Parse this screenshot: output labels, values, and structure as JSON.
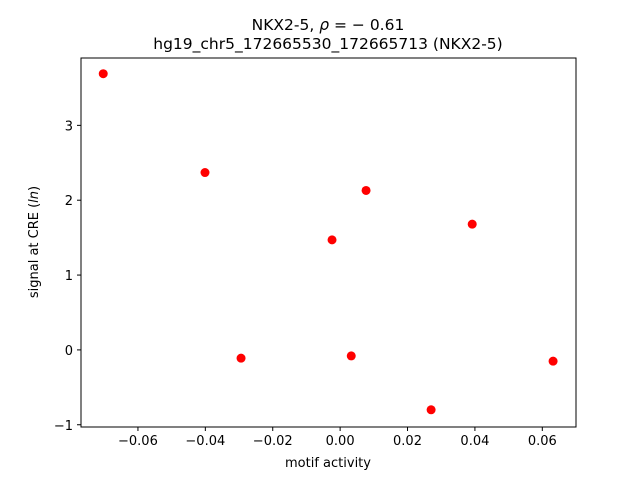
{
  "chart_data": {
    "type": "scatter",
    "title_line1_prefix": "NKX2-5, ",
    "title_line1_symbol": "ρ",
    "title_line1_suffix": " = − 0.61",
    "title_line2": "hg19_chr5_172665530_172665713 (NKX2-5)",
    "xlabel": "motif activity",
    "ylabel_prefix": "signal at CRE (",
    "ylabel_italic": "ln",
    "ylabel_suffix": ")",
    "xlim": [
      -0.0769,
      0.07
    ],
    "ylim": [
      -1.03,
      3.9
    ],
    "xticks": [
      -0.06,
      -0.04,
      -0.02,
      0.0,
      0.02,
      0.04,
      0.06
    ],
    "xtick_labels": [
      "−0.06",
      "−0.04",
      "−0.02",
      "0.00",
      "0.02",
      "0.04",
      "0.06"
    ],
    "yticks": [
      -1,
      0,
      1,
      2,
      3
    ],
    "ytick_labels": [
      "−1",
      "0",
      "1",
      "2",
      "3"
    ],
    "grid": false,
    "marker_color": "#ff0000",
    "points": [
      {
        "x": -0.0703,
        "y": 3.69
      },
      {
        "x": -0.0401,
        "y": 2.37
      },
      {
        "x": -0.0294,
        "y": -0.11
      },
      {
        "x": -0.0024,
        "y": 1.47
      },
      {
        "x": 0.0033,
        "y": -0.08
      },
      {
        "x": 0.0077,
        "y": 2.13
      },
      {
        "x": 0.027,
        "y": -0.8
      },
      {
        "x": 0.0392,
        "y": 1.68
      },
      {
        "x": 0.0632,
        "y": -0.15
      }
    ]
  }
}
